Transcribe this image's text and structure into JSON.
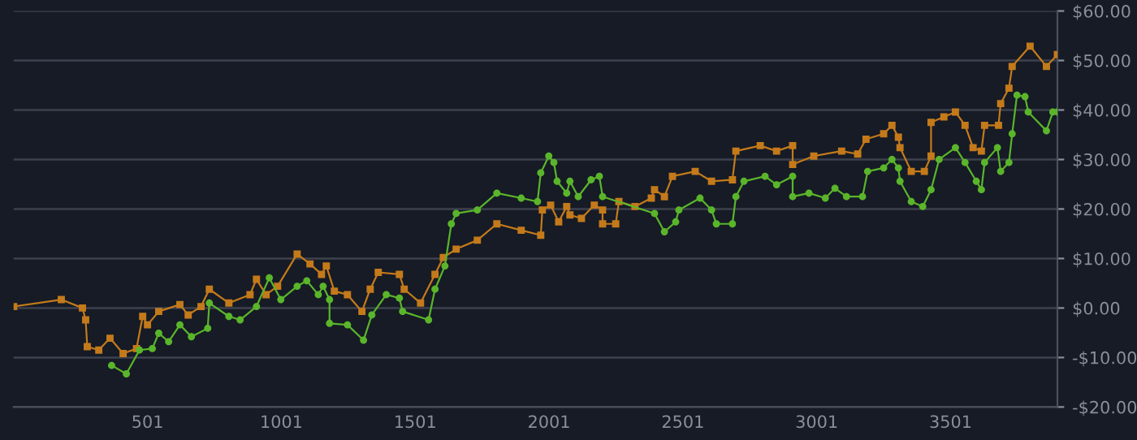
{
  "chart_data": {
    "type": "line",
    "xlim": [
      1,
      3900
    ],
    "xticks": [
      501,
      1001,
      1501,
      2001,
      2501,
      3001,
      3501
    ],
    "ylim": [
      -20,
      60
    ],
    "yticks": [
      {
        "value": -20,
        "label": "-$20.00"
      },
      {
        "value": -10,
        "label": "-$10.00"
      },
      {
        "value": 0,
        "label": "$0.00"
      },
      {
        "value": 10,
        "label": "$10.00"
      },
      {
        "value": 20,
        "label": "$20.00"
      },
      {
        "value": 30,
        "label": "$30.00"
      },
      {
        "value": 40,
        "label": "$40.00"
      },
      {
        "value": 50,
        "label": "$50.00"
      },
      {
        "value": 60,
        "label": "$60.00"
      }
    ],
    "grid": "y",
    "legend": false,
    "line_style": "solid",
    "series": [
      {
        "color": "#c47a1a",
        "marker": "square",
        "x": [
          1,
          179,
          258,
          270,
          276,
          319,
          361,
          410,
          460,
          483,
          501,
          543,
          622,
          653,
          701,
          732,
          805,
          884,
          908,
          944,
          987,
          1060,
          1108,
          1151,
          1169,
          1199,
          1248,
          1302,
          1333,
          1363,
          1442,
          1460,
          1521,
          1575,
          1606,
          1654,
          1733,
          1806,
          1897,
          1970,
          1976,
          2007,
          2037,
          2067,
          2079,
          2122,
          2170,
          2201,
          2201,
          2250,
          2262,
          2322,
          2383,
          2395,
          2432,
          2462,
          2547,
          2608,
          2686,
          2699,
          2790,
          2851,
          2911,
          2911,
          2990,
          3094,
          3154,
          3185,
          3251,
          3282,
          3306,
          3312,
          3354,
          3403,
          3428,
          3428,
          3476,
          3519,
          3555,
          3585,
          3616,
          3628,
          3680,
          3688,
          3719,
          3731,
          3798,
          3859,
          3900
        ],
        "values": [
          0.3,
          1.7,
          0,
          -2.4,
          -7.8,
          -8.5,
          -6.1,
          -9.2,
          -8.2,
          -1.7,
          -3.4,
          -0.7,
          0.7,
          -1.4,
          0.3,
          3.8,
          1,
          2.7,
          5.8,
          2.7,
          4.4,
          10.9,
          8.9,
          6.8,
          8.5,
          3.4,
          2.7,
          -0.7,
          3.8,
          7.2,
          6.8,
          3.8,
          1,
          6.8,
          10.2,
          11.9,
          13.7,
          17,
          15.7,
          14.7,
          19.8,
          20.8,
          17.4,
          20.5,
          18.8,
          18.1,
          20.8,
          19.8,
          17,
          17,
          21.5,
          20.5,
          22.2,
          23.9,
          22.5,
          26.6,
          27.6,
          25.6,
          25.9,
          31.7,
          32.8,
          31.7,
          32.8,
          29,
          30.7,
          31.7,
          31.1,
          34.1,
          35.2,
          36.9,
          34.5,
          32.4,
          27.6,
          27.6,
          30.7,
          37.5,
          38.6,
          39.6,
          36.9,
          32.4,
          31.7,
          36.9,
          36.9,
          41.3,
          44.4,
          48.8,
          52.9,
          48.8,
          51.2
        ]
      },
      {
        "color": "#5ab52a",
        "marker": "circle",
        "x": [
          367,
          422,
          471,
          519,
          543,
          580,
          622,
          665,
          726,
          732,
          805,
          847,
          908,
          956,
          999,
          1060,
          1096,
          1139,
          1157,
          1181,
          1181,
          1248,
          1308,
          1339,
          1393,
          1442,
          1454,
          1551,
          1575,
          1612,
          1636,
          1654,
          1733,
          1806,
          1897,
          1958,
          1970,
          2000,
          2019,
          2031,
          2067,
          2079,
          2110,
          2158,
          2189,
          2201,
          2395,
          2432,
          2474,
          2486,
          2565,
          2608,
          2626,
          2686,
          2699,
          2729,
          2808,
          2851,
          2911,
          2911,
          2972,
          3033,
          3069,
          3112,
          3172,
          3191,
          3251,
          3282,
          3306,
          3312,
          3354,
          3397,
          3428,
          3458,
          3519,
          3555,
          3597,
          3616,
          3628,
          3676,
          3688,
          3719,
          3731,
          3749,
          3779,
          3791,
          3859,
          3883,
          3900
        ],
        "values": [
          -11.6,
          -13.3,
          -8.5,
          -8.2,
          -5.1,
          -6.8,
          -3.4,
          -5.8,
          -4.1,
          1,
          -1.7,
          -2.4,
          0.3,
          6.1,
          1.7,
          4.4,
          5.5,
          2.7,
          4.4,
          1.7,
          -3.1,
          -3.4,
          -6.5,
          -1.4,
          2.7,
          2,
          -0.7,
          -2.4,
          3.8,
          8.5,
          17,
          19.1,
          19.8,
          23.2,
          22.2,
          21.5,
          27.3,
          30.7,
          29.4,
          25.6,
          23.2,
          25.6,
          22.5,
          25.9,
          26.6,
          22.5,
          19.1,
          15.4,
          17.4,
          19.8,
          22.2,
          19.8,
          17,
          17,
          22.5,
          25.6,
          26.6,
          24.9,
          26.6,
          22.5,
          23.2,
          22.2,
          24.2,
          22.5,
          22.5,
          27.6,
          28.3,
          30,
          28.3,
          25.6,
          21.5,
          20.5,
          23.9,
          30,
          32.4,
          29.4,
          25.6,
          23.9,
          29.4,
          32.4,
          27.6,
          29.4,
          35.2,
          43,
          42.7,
          39.6,
          35.8,
          39.6,
          39.6
        ]
      }
    ]
  }
}
